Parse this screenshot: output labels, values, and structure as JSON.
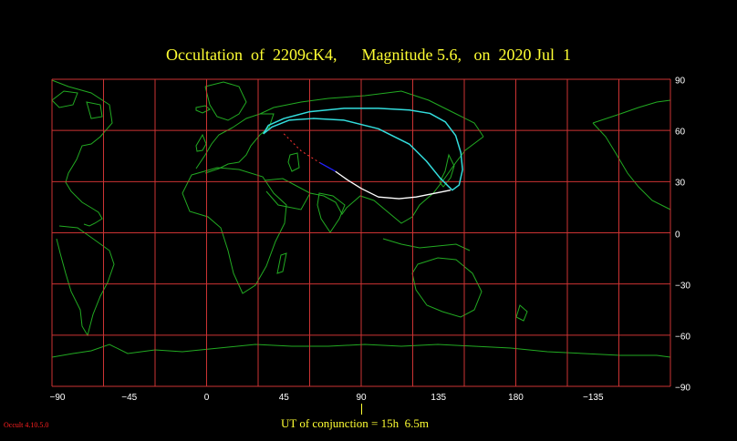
{
  "title": "Occultation  of  2209cK4,      Magnitude 5.6,   on  2020 Jul  1",
  "conjunction_text": "UT of conjunction = 15h  6.5m",
  "version": "Occult 4.10.5.0",
  "x_ticks": [
    "−90",
    "−45",
    "0",
    "45",
    "90",
    "135",
    "180",
    "−135"
  ],
  "y_ticks": [
    "90",
    "60",
    "30",
    "0",
    "−30",
    "−60",
    "−90"
  ],
  "colors": {
    "background": "#000000",
    "grid": "#cc3333",
    "coast": "#22aa22",
    "title": "#ffff33",
    "path_night": "#ffffff",
    "path_twilight": "#2222ff",
    "path_projected": "#ff3333",
    "path_visible": "#33dddd"
  },
  "map": {
    "lon_range": [
      -90,
      270
    ],
    "lat_range": [
      -90,
      90
    ],
    "grid_step_deg": 30,
    "projection": "equirectangular"
  },
  "tracks": {
    "cyan_loop": [
      [
        33,
        58
      ],
      [
        36,
        63
      ],
      [
        45,
        67
      ],
      [
        60,
        71
      ],
      [
        80,
        73
      ],
      [
        100,
        73
      ],
      [
        118,
        72
      ],
      [
        130,
        70
      ],
      [
        139,
        65
      ],
      [
        145,
        57
      ],
      [
        148,
        47
      ],
      [
        149,
        37
      ],
      [
        147,
        28
      ],
      [
        143,
        25
      ],
      [
        136,
        32
      ],
      [
        128,
        42
      ],
      [
        118,
        52
      ],
      [
        100,
        61
      ],
      [
        80,
        66
      ],
      [
        62,
        67
      ],
      [
        48,
        66
      ],
      [
        38,
        62
      ],
      [
        33,
        58
      ]
    ],
    "white_arc": [
      [
        75,
        36
      ],
      [
        82,
        31
      ],
      [
        90,
        26
      ],
      [
        100,
        21
      ],
      [
        112,
        20
      ],
      [
        122,
        21
      ],
      [
        132,
        23
      ],
      [
        142,
        25
      ]
    ],
    "blue_segment": [
      [
        66,
        41
      ],
      [
        75,
        36
      ]
    ],
    "red_dashed": [
      [
        45,
        58
      ],
      [
        55,
        48
      ],
      [
        66,
        41
      ]
    ]
  }
}
